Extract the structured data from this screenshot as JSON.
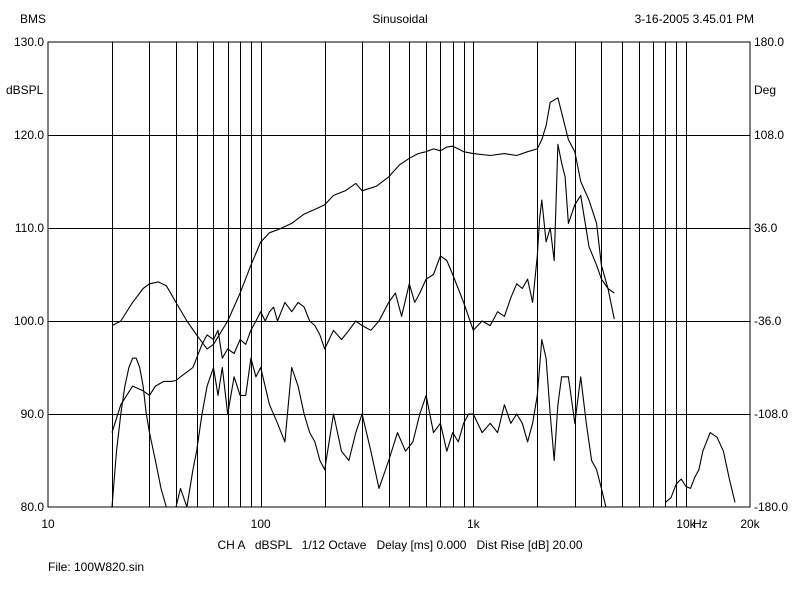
{
  "header": {
    "left": "BMS",
    "center": "Sinusoidal",
    "right": "3-16-2005 3.45.01 PM"
  },
  "footer": {
    "settings": "CH A   dBSPL   1/12 Octave   Delay [ms] 0.000   Dist Rise [dB] 20.00",
    "file": "File: 100W820.sin"
  },
  "chart_data": {
    "type": "line",
    "title": "Sinusoidal",
    "xscale": "log",
    "xlim": [
      10,
      20000
    ],
    "xticks": [
      10,
      100,
      1000,
      10000,
      20000
    ],
    "xtick_labels": [
      "10",
      "100",
      "1k",
      "10k",
      "20k"
    ],
    "xunit_label": "Hz",
    "ylabel": "dBSPL",
    "ylim": [
      80,
      130
    ],
    "yticks": [
      80,
      90,
      100,
      110,
      120,
      130
    ],
    "ytick_labels": [
      "80.0",
      "90.0",
      "100.0",
      "110.0",
      "120.0",
      "130.0"
    ],
    "y2label": "Deg",
    "y2lim": [
      -180,
      180
    ],
    "y2ticks": [
      -180,
      -108,
      -36,
      36,
      108,
      180
    ],
    "y2tick_labels": [
      "-180.0",
      "-108.0",
      "-36.0",
      "36.0",
      "108.0",
      "180.0"
    ],
    "grid": true,
    "line_color": "#000000",
    "series": [
      {
        "x": [
          20,
          22,
          25,
          28,
          30,
          33,
          36,
          40,
          45,
          50,
          56,
          60,
          70,
          80,
          90,
          100,
          110,
          120,
          140,
          160,
          180,
          200,
          220,
          250,
          280,
          300,
          350,
          400,
          450,
          500,
          550,
          600,
          650,
          700,
          750,
          800,
          850,
          900,
          1000,
          1200,
          1400,
          1600,
          1800,
          2000,
          2100,
          2200,
          2300,
          2500,
          2800,
          3000,
          3200,
          3500,
          3800,
          4000,
          4300,
          4600
        ],
        "y": [
          99.5,
          100,
          102,
          103.5,
          104,
          104.2,
          103.8,
          102,
          100,
          98.5,
          97,
          97.5,
          100,
          103,
          106,
          108.5,
          109.5,
          109.8,
          110.5,
          111.5,
          112,
          112.5,
          113.5,
          114,
          114.8,
          114,
          114.5,
          115.5,
          116.8,
          117.5,
          118,
          118.2,
          118.5,
          118.3,
          118.7,
          118.8,
          118.5,
          118.2,
          118,
          117.8,
          118,
          117.8,
          118.2,
          118.5,
          119.5,
          121,
          123.5,
          124,
          119.5,
          118.2,
          115,
          113,
          110.5,
          106,
          103.5,
          100.2
        ]
      },
      {
        "x": [
          20,
          22,
          25,
          28,
          30,
          32,
          35,
          38,
          40,
          42,
          45,
          48,
          50,
          53,
          56,
          60,
          63,
          66,
          70,
          75,
          80,
          85,
          90,
          95,
          100,
          105,
          110,
          115,
          120,
          130,
          140,
          150,
          160,
          170,
          180,
          190,
          200,
          220,
          240,
          260,
          280,
          300,
          330,
          360,
          400,
          430,
          460,
          500,
          530,
          560,
          600,
          650,
          700,
          750,
          800,
          900,
          1000,
          1100,
          1200,
          1300,
          1400,
          1500,
          1600,
          1700,
          1800,
          1900,
          2000,
          2050,
          2100,
          2200,
          2300,
          2400,
          2500,
          2600,
          2700,
          2800,
          3000,
          3200,
          3500,
          3800,
          4000,
          4300,
          4600
        ],
        "y": [
          88,
          91,
          93,
          92.5,
          92,
          93,
          93.5,
          93.5,
          93.6,
          94,
          94.5,
          95,
          96,
          97.5,
          98.5,
          98,
          99,
          96,
          97,
          96.5,
          98,
          97.5,
          99,
          100,
          101,
          100,
          101,
          101.5,
          100,
          102,
          101,
          102,
          101.5,
          100,
          99.5,
          98.5,
          97,
          99,
          98,
          99,
          100,
          99.5,
          99,
          100,
          102,
          103,
          100.5,
          104,
          102,
          103,
          104.5,
          105,
          107,
          106.5,
          105,
          102,
          99,
          100,
          99.5,
          101,
          100.5,
          102.5,
          104,
          103.5,
          104.5,
          102,
          107,
          111,
          113,
          108.5,
          110,
          106.5,
          119,
          117,
          115.5,
          110.5,
          112.5,
          113.5,
          108,
          106,
          104.5,
          103.5,
          103
        ]
      },
      {
        "x": [
          20,
          21,
          22,
          23,
          24,
          25,
          26,
          27,
          28,
          29,
          30,
          32,
          34,
          36,
          38,
          40,
          42,
          45,
          48,
          50,
          53,
          56,
          60,
          63,
          66,
          70,
          75,
          80,
          85,
          90,
          95,
          100,
          110,
          120,
          130,
          140,
          150,
          160,
          170,
          180,
          190,
          200,
          220,
          240,
          260,
          280,
          300,
          330,
          360,
          400,
          440,
          480,
          520,
          560,
          600,
          650,
          700,
          750,
          800,
          850,
          900,
          950,
          1000,
          1100,
          1200,
          1300,
          1400,
          1500,
          1600,
          1700,
          1800,
          1900,
          2000,
          2100,
          2200,
          2300,
          2400,
          2500,
          2600,
          2800,
          3000,
          3200,
          3400,
          3600,
          3800,
          4000,
          4200,
          4400,
          4700
        ],
        "y": [
          80,
          86,
          90,
          93,
          95,
          96,
          96,
          95,
          93,
          90,
          88,
          85,
          82,
          80,
          80,
          80,
          82,
          80,
          84,
          86,
          90,
          93,
          95,
          92,
          95,
          90,
          94,
          92,
          92,
          96,
          94,
          95,
          91,
          89,
          87,
          95,
          93,
          90,
          88,
          87,
          85,
          84,
          90,
          86,
          85,
          88,
          90,
          86,
          82,
          85,
          88,
          86,
          87,
          90,
          92,
          88,
          89,
          86,
          88,
          87,
          89,
          90,
          90,
          88,
          89,
          88,
          91,
          89,
          90,
          89,
          87,
          89,
          92,
          98,
          96,
          90,
          85,
          91,
          94,
          94,
          89,
          94,
          89,
          85,
          84,
          82,
          80,
          80,
          80
        ]
      },
      {
        "x": [
          8000,
          8500,
          9000,
          9500,
          10000,
          10500,
          11000,
          11500,
          12000,
          13000,
          14000,
          15000,
          16000,
          17000
        ],
        "y": [
          80.5,
          81,
          82.5,
          83,
          82.2,
          82,
          83.2,
          84,
          86,
          88,
          87.5,
          86,
          83,
          80.5
        ]
      }
    ]
  }
}
